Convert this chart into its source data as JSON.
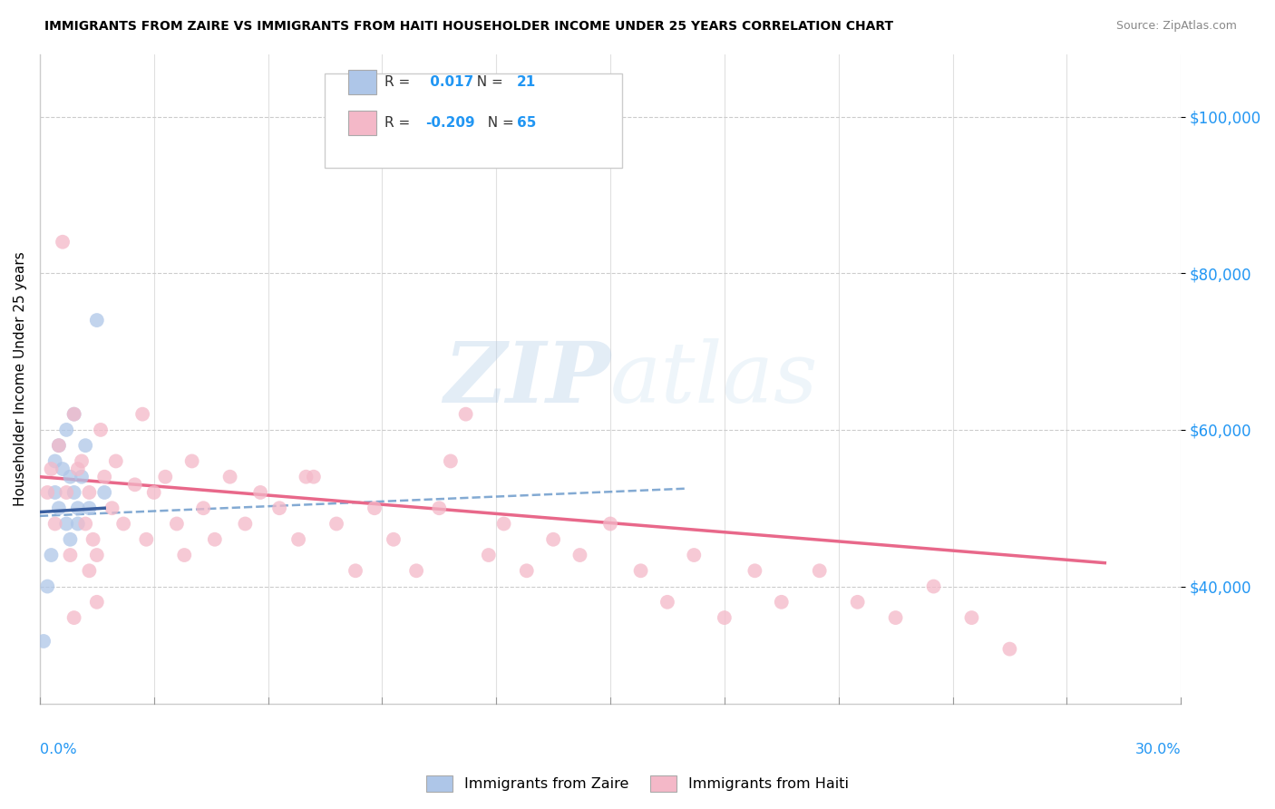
{
  "title": "IMMIGRANTS FROM ZAIRE VS IMMIGRANTS FROM HAITI HOUSEHOLDER INCOME UNDER 25 YEARS CORRELATION CHART",
  "source": "Source: ZipAtlas.com",
  "ylabel": "Householder Income Under 25 years",
  "y_ticks": [
    40000,
    60000,
    80000,
    100000
  ],
  "y_tick_labels": [
    "$40,000",
    "$60,000",
    "$80,000",
    "$100,000"
  ],
  "x_min": 0.0,
  "x_max": 0.3,
  "y_min": 25000,
  "y_max": 108000,
  "zaire_R": 0.017,
  "zaire_N": 21,
  "haiti_R": -0.209,
  "haiti_N": 65,
  "zaire_color": "#aec6e8",
  "haiti_color": "#f4b8c8",
  "zaire_line_color": "#6495c8",
  "haiti_line_color": "#e8688a",
  "watermark_color": "#c8ddf0",
  "zaire_points_x": [
    0.001,
    0.002,
    0.003,
    0.004,
    0.004,
    0.005,
    0.005,
    0.006,
    0.007,
    0.007,
    0.008,
    0.008,
    0.009,
    0.009,
    0.01,
    0.01,
    0.011,
    0.012,
    0.013,
    0.015,
    0.017
  ],
  "zaire_points_y": [
    33000,
    40000,
    44000,
    52000,
    56000,
    50000,
    58000,
    55000,
    48000,
    60000,
    54000,
    46000,
    52000,
    62000,
    50000,
    48000,
    54000,
    58000,
    50000,
    74000,
    52000
  ],
  "haiti_points_x": [
    0.002,
    0.003,
    0.004,
    0.005,
    0.006,
    0.007,
    0.008,
    0.009,
    0.01,
    0.011,
    0.012,
    0.013,
    0.014,
    0.015,
    0.016,
    0.017,
    0.019,
    0.02,
    0.022,
    0.025,
    0.027,
    0.03,
    0.033,
    0.036,
    0.038,
    0.04,
    0.043,
    0.046,
    0.05,
    0.054,
    0.058,
    0.063,
    0.068,
    0.072,
    0.078,
    0.083,
    0.088,
    0.093,
    0.099,
    0.105,
    0.108,
    0.112,
    0.118,
    0.122,
    0.128,
    0.135,
    0.142,
    0.15,
    0.158,
    0.165,
    0.172,
    0.18,
    0.188,
    0.195,
    0.205,
    0.215,
    0.225,
    0.235,
    0.245,
    0.255,
    0.015,
    0.009,
    0.013,
    0.028,
    0.07
  ],
  "haiti_points_y": [
    52000,
    55000,
    48000,
    58000,
    84000,
    52000,
    44000,
    62000,
    55000,
    56000,
    48000,
    52000,
    46000,
    44000,
    60000,
    54000,
    50000,
    56000,
    48000,
    53000,
    62000,
    52000,
    54000,
    48000,
    44000,
    56000,
    50000,
    46000,
    54000,
    48000,
    52000,
    50000,
    46000,
    54000,
    48000,
    42000,
    50000,
    46000,
    42000,
    50000,
    56000,
    62000,
    44000,
    48000,
    42000,
    46000,
    44000,
    48000,
    42000,
    38000,
    44000,
    36000,
    42000,
    38000,
    42000,
    38000,
    36000,
    40000,
    36000,
    32000,
    38000,
    36000,
    42000,
    46000,
    54000
  ]
}
